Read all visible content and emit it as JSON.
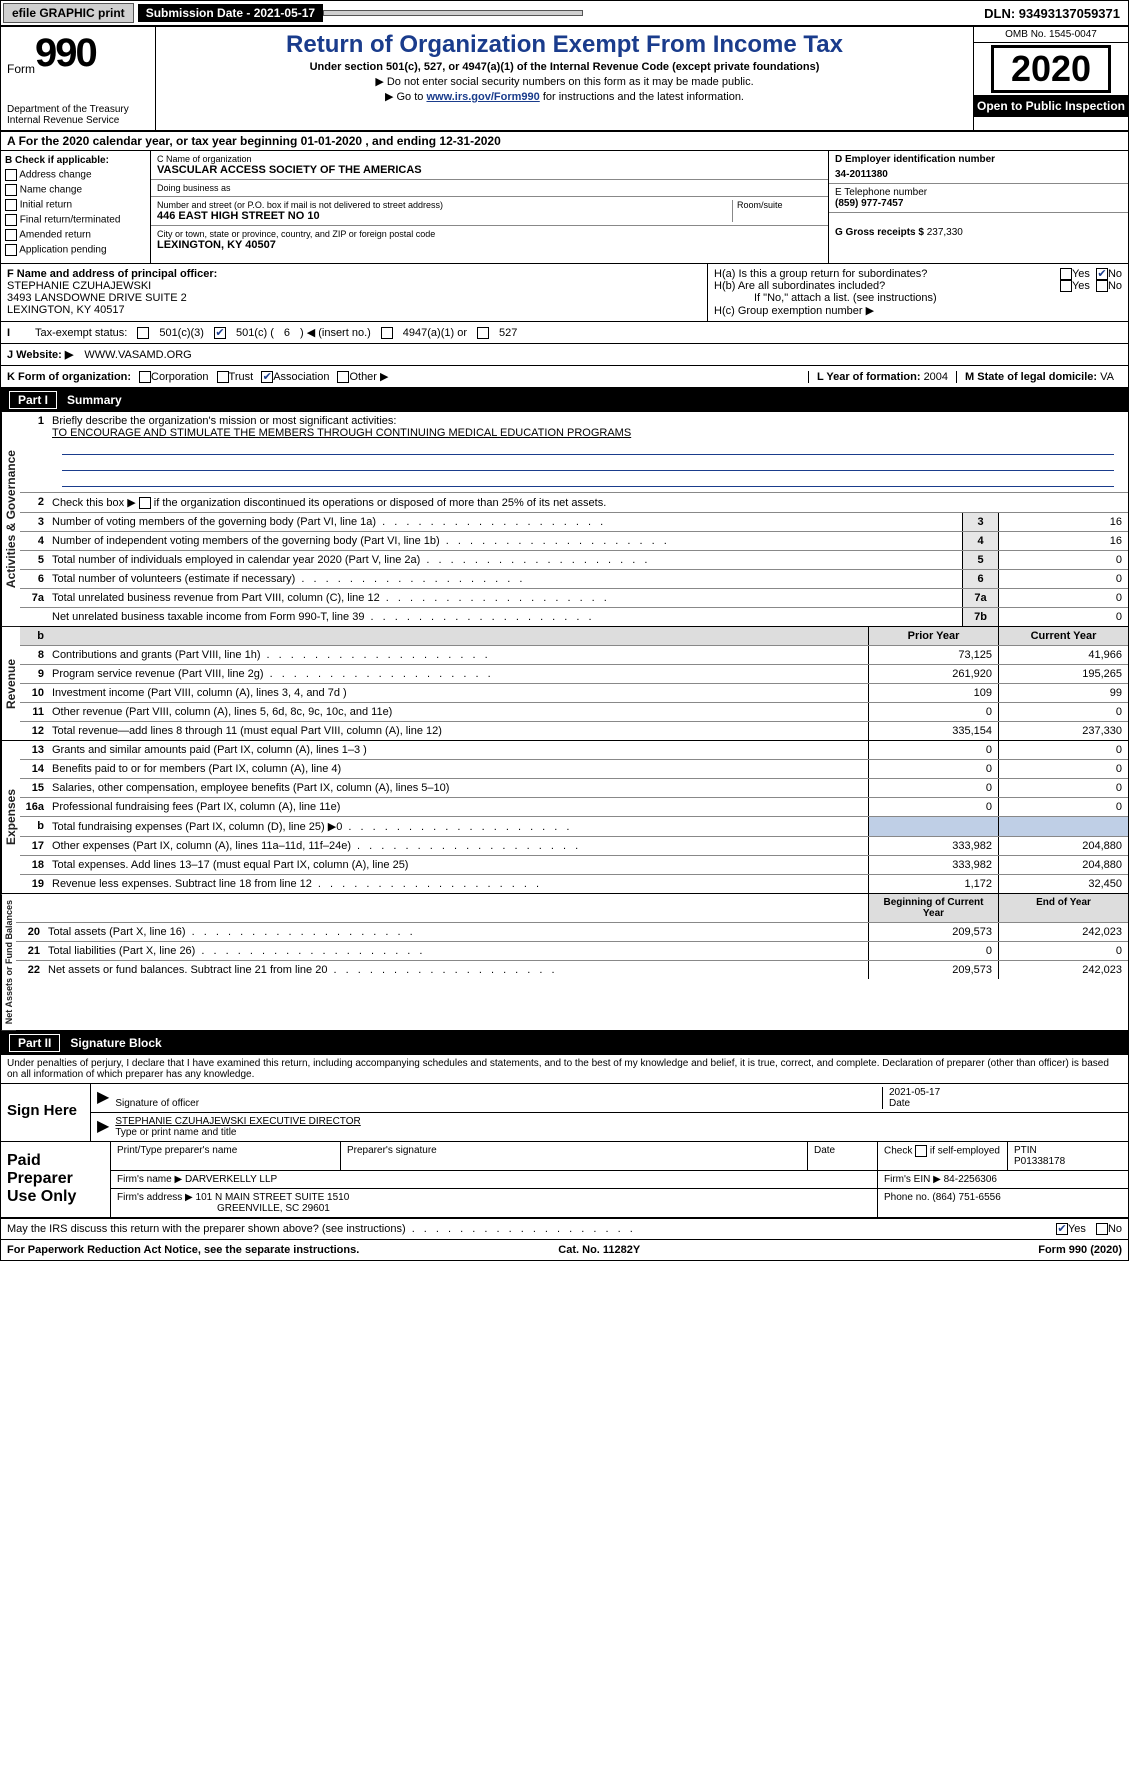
{
  "topbar": {
    "efile": "efile GRAPHIC print",
    "subdate_label": "Submission Date - 2021-05-17",
    "dln": "DLN: 93493137059371"
  },
  "header": {
    "form_word": "Form",
    "form_num": "990",
    "dept": "Department of the Treasury\nInternal Revenue Service",
    "title": "Return of Organization Exempt From Income Tax",
    "sub": "Under section 501(c), 527, or 4947(a)(1) of the Internal Revenue Code (except private foundations)",
    "note1": "▶ Do not enter social security numbers on this form as it may be made public.",
    "note2_pre": "▶ Go to ",
    "note2_link": "www.irs.gov/Form990",
    "note2_post": " for instructions and the latest information.",
    "omb": "OMB No. 1545-0047",
    "year": "2020",
    "inspect": "Open to Public Inspection"
  },
  "period": {
    "line": "For the 2020 calendar year, or tax year beginning 01-01-2020     , and ending 12-31-2020"
  },
  "boxB": {
    "label": "B Check if applicable:",
    "opts": [
      "Address change",
      "Name change",
      "Initial return",
      "Final return/terminated",
      "Amended return",
      "Application pending"
    ]
  },
  "boxC": {
    "name_lbl": "C Name of organization",
    "name": "VASCULAR ACCESS SOCIETY OF THE AMERICAS",
    "dba_lbl": "Doing business as",
    "dba": "",
    "street_lbl": "Number and street (or P.O. box if mail is not delivered to street address)",
    "room_lbl": "Room/suite",
    "street": "446 EAST HIGH STREET NO 10",
    "city_lbl": "City or town, state or province, country, and ZIP or foreign postal code",
    "city": "LEXINGTON, KY  40507"
  },
  "boxD": {
    "lbl": "D Employer identification number",
    "val": "34-2011380"
  },
  "boxE": {
    "lbl": "E Telephone number",
    "val": "(859) 977-7457"
  },
  "boxG": {
    "lbl": "G Gross receipts $",
    "val": "237,330"
  },
  "boxF": {
    "lbl": "F  Name and address of principal officer:",
    "name": "STEPHANIE CZUHAJEWSKI",
    "addr1": "3493 LANSDOWNE DRIVE SUITE 2",
    "addr2": "LEXINGTON, KY  40517"
  },
  "boxH": {
    "a": "H(a)  Is this a group return for subordinates?",
    "b": "H(b)  Are all subordinates included?",
    "b_note": "If \"No,\" attach a list. (see instructions)",
    "c": "H(c)  Group exemption number ▶"
  },
  "boxI": {
    "lbl": "Tax-exempt status:",
    "o1": "501(c)(3)",
    "o2_pre": "501(c) ( ",
    "o2_val": "6",
    "o2_post": " ) ◀ (insert no.)",
    "o3": "4947(a)(1) or",
    "o4": "527"
  },
  "boxJ": {
    "lbl": "J    Website: ▶",
    "val": "WWW.VASAMD.ORG"
  },
  "boxK": {
    "lbl": "K Form of organization:",
    "opts": [
      "Corporation",
      "Trust",
      "Association",
      "Other ▶"
    ],
    "checked": 2
  },
  "boxL": {
    "lbl": "L Year of formation:",
    "val": "2004"
  },
  "boxM": {
    "lbl": "M State of legal domicile:",
    "val": "VA"
  },
  "partI": {
    "no": "Part I",
    "title": "Summary"
  },
  "summary": {
    "q1": "Briefly describe the organization's mission or most significant activities:",
    "mission": "TO ENCOURAGE AND STIMULATE THE MEMBERS THROUGH CONTINUING MEDICAL EDUCATION PROGRAMS",
    "q2": "Check this box ▶      if the organization discontinued its operations or disposed of more than 25% of its net assets.",
    "rows_top": [
      {
        "n": "3",
        "t": "Number of voting members of the governing body (Part VI, line 1a)",
        "bn": "3",
        "v": "16"
      },
      {
        "n": "4",
        "t": "Number of independent voting members of the governing body (Part VI, line 1b)",
        "bn": "4",
        "v": "16"
      },
      {
        "n": "5",
        "t": "Total number of individuals employed in calendar year 2020 (Part V, line 2a)",
        "bn": "5",
        "v": "0"
      },
      {
        "n": "6",
        "t": "Total number of volunteers (estimate if necessary)",
        "bn": "6",
        "v": "0"
      },
      {
        "n": "7a",
        "t": "Total unrelated business revenue from Part VIII, column (C), line 12",
        "bn": "7a",
        "v": "0"
      },
      {
        "n": "",
        "t": "Net unrelated business taxable income from Form 990-T, line 39",
        "bn": "7b",
        "v": "0"
      }
    ],
    "col_h1": "Prior Year",
    "col_h2": "Current Year",
    "revenue": [
      {
        "n": "8",
        "t": "Contributions and grants (Part VIII, line 1h)",
        "p": "73,125",
        "c": "41,966"
      },
      {
        "n": "9",
        "t": "Program service revenue (Part VIII, line 2g)",
        "p": "261,920",
        "c": "195,265"
      },
      {
        "n": "10",
        "t": "Investment income (Part VIII, column (A), lines 3, 4, and 7d )",
        "p": "109",
        "c": "99"
      },
      {
        "n": "11",
        "t": "Other revenue (Part VIII, column (A), lines 5, 6d, 8c, 9c, 10c, and 11e)",
        "p": "0",
        "c": "0"
      },
      {
        "n": "12",
        "t": "Total revenue—add lines 8 through 11 (must equal Part VIII, column (A), line 12)",
        "p": "335,154",
        "c": "237,330"
      }
    ],
    "expenses": [
      {
        "n": "13",
        "t": "Grants and similar amounts paid (Part IX, column (A), lines 1–3 )",
        "p": "0",
        "c": "0"
      },
      {
        "n": "14",
        "t": "Benefits paid to or for members (Part IX, column (A), line 4)",
        "p": "0",
        "c": "0"
      },
      {
        "n": "15",
        "t": "Salaries, other compensation, employee benefits (Part IX, column (A), lines 5–10)",
        "p": "0",
        "c": "0"
      },
      {
        "n": "16a",
        "t": "Professional fundraising fees (Part IX, column (A), line 11e)",
        "p": "0",
        "c": "0"
      },
      {
        "n": "b",
        "t": "Total fundraising expenses (Part IX, column (D), line 25) ▶0",
        "p": "",
        "c": "",
        "shade": true
      },
      {
        "n": "17",
        "t": "Other expenses (Part IX, column (A), lines 11a–11d, 11f–24e)",
        "p": "333,982",
        "c": "204,880"
      },
      {
        "n": "18",
        "t": "Total expenses. Add lines 13–17 (must equal Part IX, column (A), line 25)",
        "p": "333,982",
        "c": "204,880"
      },
      {
        "n": "19",
        "t": "Revenue less expenses. Subtract line 18 from line 12",
        "p": "1,172",
        "c": "32,450"
      }
    ],
    "col_h3": "Beginning of Current Year",
    "col_h4": "End of Year",
    "netassets": [
      {
        "n": "20",
        "t": "Total assets (Part X, line 16)",
        "p": "209,573",
        "c": "242,023"
      },
      {
        "n": "21",
        "t": "Total liabilities (Part X, line 26)",
        "p": "0",
        "c": "0"
      },
      {
        "n": "22",
        "t": "Net assets or fund balances. Subtract line 21 from line 20",
        "p": "209,573",
        "c": "242,023"
      }
    ]
  },
  "sidelabels": {
    "gov": "Activities & Governance",
    "rev": "Revenue",
    "exp": "Expenses",
    "net": "Net Assets or Fund Balances"
  },
  "partII": {
    "no": "Part II",
    "title": "Signature Block"
  },
  "sigtext": "Under penalties of perjury, I declare that I have examined this return, including accompanying schedules and statements, and to the best of my knowledge and belief, it is true, correct, and complete. Declaration of preparer (other than officer) is based on all information of which preparer has any knowledge.",
  "sign": {
    "left": "Sign Here",
    "sig_lbl": "Signature of officer",
    "date": "2021-05-17",
    "date_lbl": "Date",
    "name": "STEPHANIE CZUHAJEWSKI  EXECUTIVE DIRECTOR",
    "name_lbl": "Type or print name and title"
  },
  "paid": {
    "left": "Paid Preparer Use Only",
    "h1": "Print/Type preparer's name",
    "h2": "Preparer's signature",
    "h3": "Date",
    "h4_pre": "Check",
    "h4_post": "if self-employed",
    "h5": "PTIN",
    "ptin": "P01338178",
    "firm_lbl": "Firm's name    ▶",
    "firm": "DARVERKELLY LLP",
    "ein_lbl": "Firm's EIN ▶",
    "ein": "84-2256306",
    "addr_lbl": "Firm's address ▶",
    "addr": "101 N MAIN STREET SUITE 1510",
    "addr2": "GREENVILLE, SC  29601",
    "phone_lbl": "Phone no.",
    "phone": "(864) 751-6556"
  },
  "discuss": "May the IRS discuss this return with the preparer shown above? (see instructions)",
  "footer": {
    "left": "For Paperwork Reduction Act Notice, see the separate instructions.",
    "mid": "Cat. No. 11282Y",
    "right": "Form 990 (2020)"
  }
}
